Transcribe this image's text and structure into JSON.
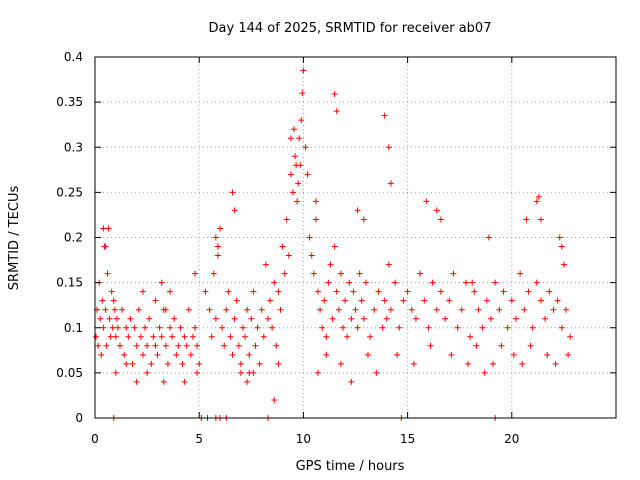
{
  "chart_data": {
    "type": "scatter",
    "title": "Day 144 of 2025, SRMTID for receiver ab07",
    "xlabel": "GPS time / hours",
    "ylabel": "SRMTID / TECUs",
    "xlim": [
      0,
      25
    ],
    "ylim": [
      0,
      0.4
    ],
    "grid": true,
    "marker": "plus",
    "marker_color": "#ff0000",
    "x_ticks": [
      0,
      5,
      10,
      15,
      20
    ],
    "x_tick_labels": [
      "0",
      "5",
      "10",
      "15",
      "20"
    ],
    "y_ticks": [
      0,
      0.05,
      0.1,
      0.15,
      0.2,
      0.25,
      0.3,
      0.35,
      0.4
    ],
    "y_tick_labels": [
      "0",
      "0.05",
      "0.1",
      "0.15",
      "0.2",
      "0.25",
      "0.3",
      "0.35",
      "0.4"
    ],
    "series": [
      {
        "name": "SRMTID",
        "x": [
          0.05,
          0.1,
          0.15,
          0.2,
          0.25,
          0.3,
          0.35,
          0.4,
          0.45,
          0.5,
          0.55,
          0.6,
          0.65,
          0.7,
          0.75,
          0.8,
          0.85,
          0.9,
          0.95,
          1.0,
          1.05,
          1.1,
          1.2,
          1.3,
          1.4,
          1.5,
          1.6,
          1.7,
          1.8,
          1.9,
          2.0,
          2.1,
          2.2,
          2.3,
          2.4,
          2.5,
          2.6,
          2.7,
          2.8,
          2.9,
          3.0,
          3.1,
          3.2,
          3.3,
          3.4,
          3.5,
          3.6,
          3.7,
          3.8,
          3.9,
          4.0,
          4.1,
          4.2,
          4.3,
          4.4,
          4.5,
          4.6,
          4.7,
          4.8,
          4.9,
          5.0,
          5.3,
          5.5,
          5.6,
          5.7,
          5.8,
          5.9,
          6.0,
          6.1,
          6.2,
          6.3,
          6.4,
          6.5,
          6.6,
          6.7,
          6.8,
          6.9,
          7.0,
          7.1,
          7.2,
          7.3,
          7.4,
          7.5,
          7.6,
          7.7,
          7.8,
          7.9,
          8.0,
          8.1,
          8.2,
          8.3,
          8.4,
          8.5,
          8.6,
          8.7,
          8.8,
          8.9,
          9.0,
          9.1,
          9.2,
          9.3,
          9.4,
          9.5,
          9.6,
          9.7,
          9.8,
          9.85,
          9.9,
          9.95,
          10.0,
          10.1,
          10.2,
          10.3,
          10.4,
          10.5,
          10.6,
          10.7,
          10.8,
          10.9,
          11.0,
          11.1,
          11.2,
          11.3,
          11.4,
          11.5,
          11.6,
          11.7,
          11.8,
          11.9,
          12.0,
          12.1,
          12.2,
          12.3,
          12.4,
          12.5,
          12.6,
          12.7,
          12.8,
          12.9,
          13.0,
          13.2,
          13.4,
          13.6,
          13.8,
          13.9,
          14.0,
          14.1,
          14.2,
          14.4,
          14.6,
          14.8,
          15.0,
          15.2,
          15.4,
          15.6,
          15.8,
          16.0,
          16.2,
          16.4,
          16.6,
          16.8,
          17.0,
          17.2,
          17.4,
          17.6,
          17.8,
          18.0,
          18.2,
          18.4,
          18.6,
          18.8,
          19.0,
          19.2,
          19.4,
          19.6,
          19.8,
          20.0,
          20.2,
          20.4,
          20.6,
          20.8,
          21.0,
          21.2,
          21.4,
          21.6,
          21.8,
          22.0,
          22.2,
          22.4,
          22.6,
          22.8,
          0.9,
          5.1,
          5.4,
          5.8,
          6.0,
          6.3,
          8.3,
          14.7,
          19.2,
          0.4,
          0.5,
          2.3,
          2.9,
          3.2,
          3.4,
          3.6,
          4.8,
          6.6,
          6.7,
          5.8,
          5.9,
          7.4,
          8.6,
          9.4,
          9.55,
          9.65,
          9.75,
          10.6,
          11.5,
          11.6,
          12.6,
          12.9,
          13.9,
          14.1,
          14.2,
          15.9,
          16.4,
          16.6,
          18.1,
          18.9,
          20.7,
          21.2,
          21.3,
          21.4,
          22.3,
          22.4,
          22.5,
          1.0,
          1.5,
          2.0,
          2.5,
          3.3,
          4.3,
          4.9,
          7.0,
          7.3,
          7.6,
          8.8,
          10.7,
          11.1,
          11.8,
          12.3,
          13.1,
          13.5,
          14.5,
          15.3,
          16.1,
          17.1,
          17.9,
          18.3,
          18.7,
          19.1,
          19.5,
          20.1,
          20.5,
          20.9,
          21.7,
          22.1,
          22.7
        ],
        "y": [
          0.09,
          0.12,
          0.08,
          0.15,
          0.11,
          0.07,
          0.13,
          0.1,
          0.19,
          0.12,
          0.08,
          0.16,
          0.21,
          0.11,
          0.09,
          0.14,
          0.1,
          0.13,
          0.12,
          0.09,
          0.11,
          0.1,
          0.08,
          0.12,
          0.07,
          0.1,
          0.09,
          0.11,
          0.06,
          0.1,
          0.08,
          0.12,
          0.09,
          0.07,
          0.1,
          0.08,
          0.11,
          0.06,
          0.09,
          0.08,
          0.07,
          0.1,
          0.09,
          0.12,
          0.08,
          0.06,
          0.1,
          0.09,
          0.11,
          0.07,
          0.08,
          0.1,
          0.06,
          0.09,
          0.08,
          0.12,
          0.07,
          0.09,
          0.1,
          0.08,
          0.06,
          0.14,
          0.12,
          0.09,
          0.16,
          0.11,
          0.18,
          0.21,
          0.1,
          0.08,
          0.12,
          0.14,
          0.09,
          0.07,
          0.11,
          0.13,
          0.08,
          0.06,
          0.1,
          0.09,
          0.12,
          0.07,
          0.11,
          0.14,
          0.08,
          0.1,
          0.06,
          0.12,
          0.09,
          0.17,
          0.11,
          0.13,
          0.1,
          0.15,
          0.08,
          0.14,
          0.12,
          0.19,
          0.16,
          0.22,
          0.18,
          0.27,
          0.25,
          0.29,
          0.24,
          0.31,
          0.28,
          0.33,
          0.36,
          0.385,
          0.3,
          0.27,
          0.2,
          0.18,
          0.16,
          0.22,
          0.14,
          0.12,
          0.1,
          0.13,
          0.09,
          0.15,
          0.17,
          0.11,
          0.19,
          0.14,
          0.12,
          0.16,
          0.1,
          0.13,
          0.09,
          0.15,
          0.11,
          0.14,
          0.12,
          0.1,
          0.16,
          0.13,
          0.11,
          0.15,
          0.09,
          0.12,
          0.14,
          0.1,
          0.13,
          0.11,
          0.17,
          0.12,
          0.15,
          0.1,
          0.13,
          0.14,
          0.12,
          0.11,
          0.16,
          0.13,
          0.1,
          0.15,
          0.12,
          0.14,
          0.11,
          0.13,
          0.16,
          0.1,
          0.12,
          0.15,
          0.09,
          0.14,
          0.12,
          0.1,
          0.13,
          0.11,
          0.15,
          0.12,
          0.14,
          0.1,
          0.13,
          0.11,
          0.16,
          0.12,
          0.14,
          0.1,
          0.15,
          0.13,
          0.11,
          0.14,
          0.12,
          0.13,
          0.1,
          0.12,
          0.09,
          0,
          0,
          0,
          0,
          0,
          0,
          0,
          0,
          0,
          0.21,
          0.19,
          0.14,
          0.13,
          0.15,
          0.12,
          0.14,
          0.16,
          0.25,
          0.23,
          0.2,
          0.19,
          0.05,
          0.02,
          0.31,
          0.32,
          0.28,
          0.26,
          0.24,
          0.359,
          0.34,
          0.23,
          0.22,
          0.335,
          0.3,
          0.26,
          0.24,
          0.23,
          0.22,
          0.15,
          0.2,
          0.22,
          0.24,
          0.245,
          0.22,
          0.2,
          0.19,
          0.17,
          0.05,
          0.06,
          0.04,
          0.05,
          0.04,
          0.04,
          0.05,
          0.05,
          0.04,
          0.05,
          0.06,
          0.05,
          0.07,
          0.06,
          0.04,
          0.07,
          0.05,
          0.07,
          0.06,
          0.08,
          0.07,
          0.06,
          0.08,
          0.05,
          0.06,
          0.08,
          0.07,
          0.06,
          0.08,
          0.07,
          0.06,
          0.07
        ]
      }
    ]
  }
}
